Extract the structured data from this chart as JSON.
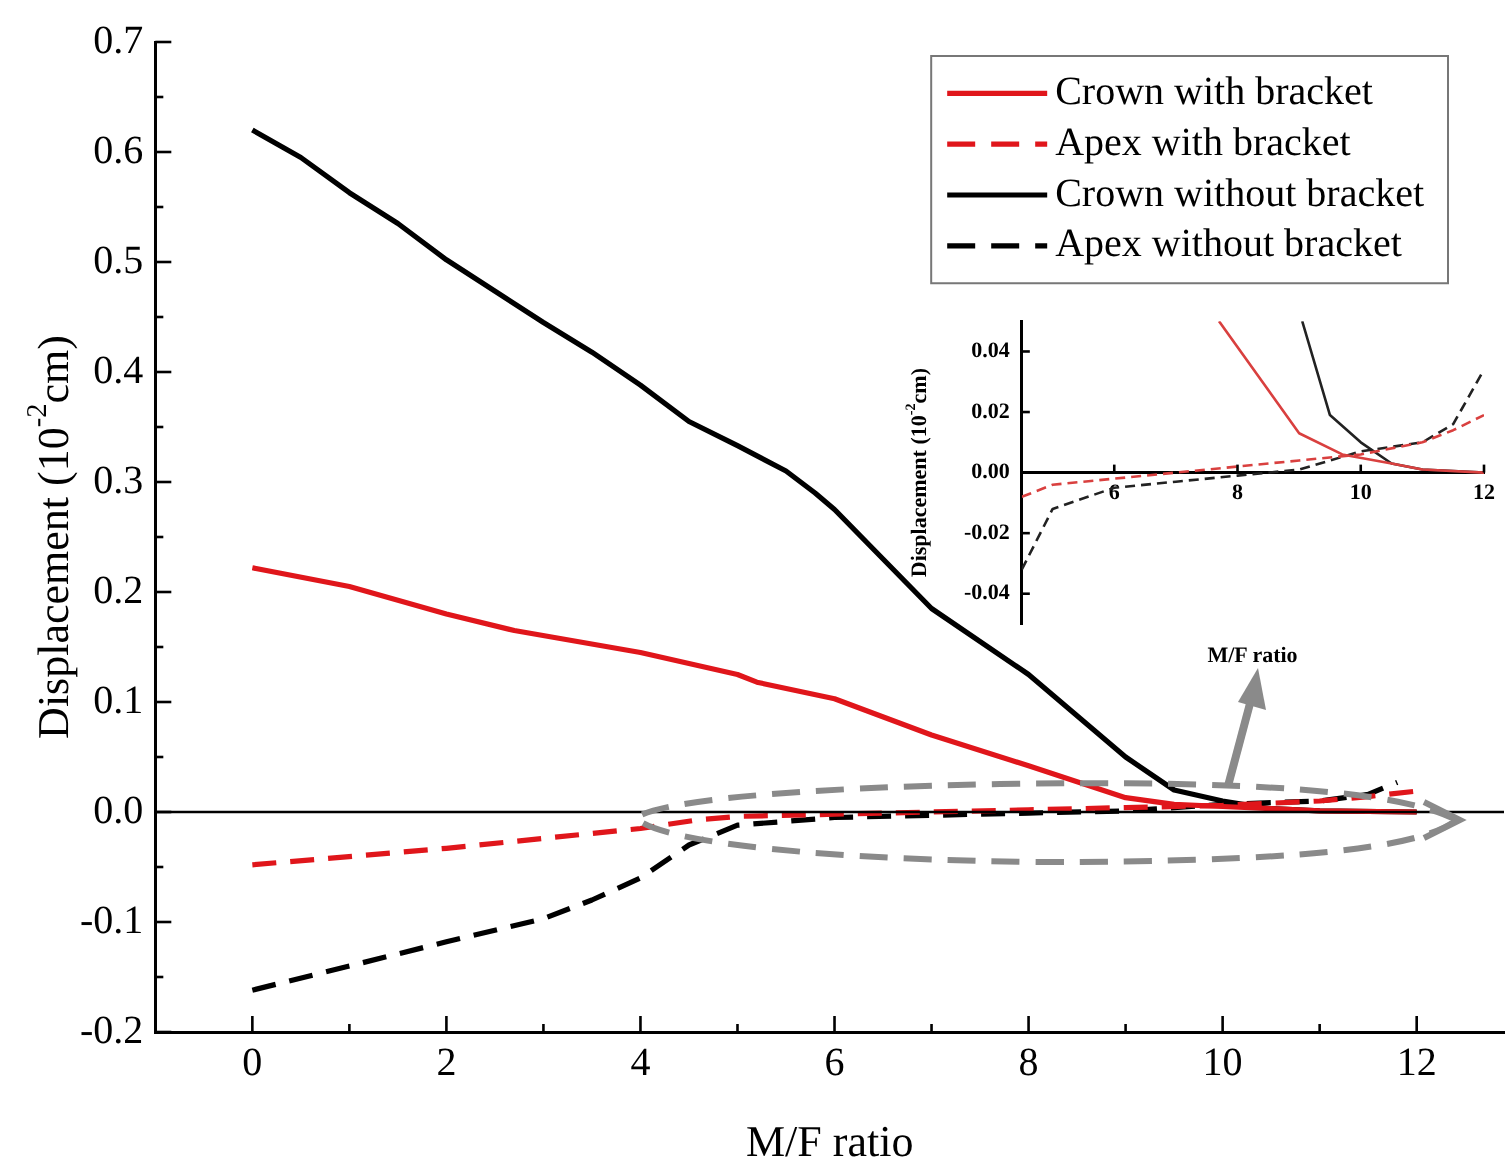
{
  "chart_data": [
    {
      "type": "line",
      "xlabel": "M/F ratio",
      "ylabel": "Displacement (10$^{-2}$cm)",
      "legend": "top right",
      "grid": false,
      "xlim": [
        -1,
        12.9
      ],
      "xticks": [
        0,
        {
          "value": 1,
          "label": null
        },
        2,
        {
          "value": 3,
          "label": null
        },
        4,
        {
          "value": 5,
          "label": null
        },
        6,
        {
          "value": 7,
          "label": null
        },
        8,
        {
          "value": 9,
          "label": null
        },
        10,
        {
          "value": 11,
          "label": null
        },
        12
      ],
      "ylim": [
        -0.2,
        0.7
      ],
      "yticks": [
        -0.2,
        {
          "value": -0.15,
          "label": null
        },
        -0.1,
        {
          "value": -0.05,
          "label": null
        },
        {
          "value": 0,
          "label": "0.0"
        },
        {
          "value": 0.05,
          "label": null
        },
        0.1,
        {
          "value": 0.15,
          "label": null
        },
        0.2,
        {
          "value": 0.25,
          "label": null
        },
        0.3,
        {
          "value": 0.35,
          "label": null
        },
        0.4,
        {
          "value": 0.45,
          "label": null
        },
        0.5,
        {
          "value": 0.55,
          "label": null
        },
        0.6,
        {
          "value": 0.65,
          "label": null
        },
        0.7
      ],
      "ref_lines": [
        {
          "axis": "y",
          "value": 0,
          "color": "#000000"
        }
      ],
      "series": [
        {
          "name": "Crown with bracket",
          "color": "#e0161b",
          "line_style": "solid",
          "x": [
            0,
            1,
            2,
            2.7,
            4,
            5,
            5.2,
            6,
            7,
            8,
            9,
            9.5,
            10,
            10.5,
            11,
            12
          ],
          "values": [
            0.222,
            0.205,
            0.18,
            0.165,
            0.145,
            0.125,
            0.118,
            0.103,
            0.07,
            0.042,
            0.013,
            0.007,
            0.005,
            0.003,
            0.001,
            0
          ]
        },
        {
          "name": "Apex with bracket",
          "color": "#e0161b",
          "line_style": "dashed",
          "x": [
            0,
            2,
            4,
            4.6,
            5,
            6,
            7,
            8,
            9,
            10,
            11,
            11.5,
            12
          ],
          "values": [
            -0.048,
            -0.033,
            -0.015,
            -0.007,
            -0.004,
            -0.002,
            0,
            0.002,
            0.004,
            0.006,
            0.01,
            0.014,
            0.019
          ]
        },
        {
          "name": "Crown without bracket",
          "color": "#000000",
          "line_style": "solid",
          "x": [
            0,
            0.5,
            1,
            1.5,
            2,
            3,
            3.5,
            4,
            4.5,
            5,
            5.5,
            5.8,
            6,
            6.5,
            7,
            8,
            9,
            9.5,
            10,
            10.5,
            11,
            12
          ],
          "values": [
            0.62,
            0.595,
            0.563,
            0.535,
            0.502,
            0.445,
            0.418,
            0.388,
            0.355,
            0.333,
            0.31,
            0.29,
            0.275,
            0.23,
            0.185,
            0.125,
            0.05,
            0.02,
            0.01,
            0.003,
            0.001,
            0
          ]
        },
        {
          "name": "Apex without bracket",
          "color": "#000000",
          "line_style": "dashed",
          "x": [
            0,
            1,
            2,
            3,
            3.5,
            4,
            4.5,
            5,
            6,
            7,
            8,
            9,
            9.5,
            10,
            11,
            11.5,
            11.8
          ],
          "values": [
            -0.162,
            -0.14,
            -0.118,
            -0.097,
            -0.08,
            -0.06,
            -0.03,
            -0.012,
            -0.005,
            -0.003,
            -0.001,
            0.001,
            0.004,
            0.007,
            0.01,
            0.016,
            0.027
          ]
        }
      ]
    },
    {
      "type": "line",
      "xlabel": "M/F ratio",
      "ylabel": "Displacement (10$^{-2}$cm)",
      "legend": false,
      "grid": false,
      "xlim": [
        4.5,
        12
      ],
      "xticks": [
        6,
        8,
        10,
        12
      ],
      "ylim": [
        -0.05,
        0.05
      ],
      "yticks": [
        -0.04,
        -0.02,
        {
          "value": 0,
          "label": "0.00"
        },
        0.02,
        0.04
      ],
      "series": [
        {
          "color": "#d9403f",
          "line_style": "solid",
          "x": [
            7.7,
            9,
            9.7,
            10.5,
            11,
            12
          ],
          "values": [
            0.05,
            0.013,
            0.006,
            0.003,
            0.001,
            0
          ]
        },
        {
          "color": "#d9403f",
          "line_style": "dashed",
          "x": [
            4.5,
            5,
            6,
            7,
            8,
            9,
            10,
            11,
            11.5,
            12
          ],
          "values": [
            -0.008,
            -0.004,
            -0.002,
            0,
            0.002,
            0.004,
            0.006,
            0.01,
            0.014,
            0.019
          ]
        },
        {
          "color": "#222222",
          "line_style": "solid",
          "x": [
            9.05,
            9.5,
            10,
            10.5,
            11,
            12
          ],
          "values": [
            0.05,
            0.019,
            0.01,
            0.003,
            0.001,
            0
          ]
        },
        {
          "color": "#222222",
          "line_style": "dashed",
          "x": [
            4.5,
            5,
            6,
            7,
            8,
            9,
            9.5,
            10,
            11,
            11.5,
            12
          ],
          "values": [
            -0.032,
            -0.012,
            -0.005,
            -0.003,
            -0.001,
            0.001,
            0.004,
            0.007,
            0.01,
            0.016,
            0.034
          ]
        }
      ]
    }
  ]
}
